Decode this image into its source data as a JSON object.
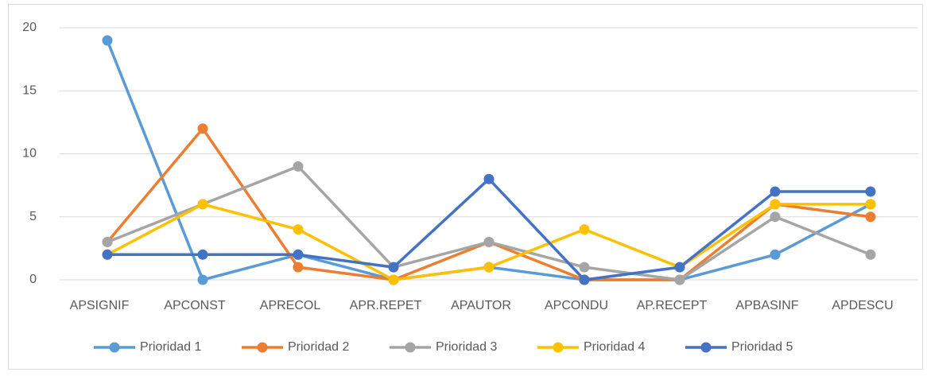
{
  "chart_data": {
    "type": "line",
    "categories": [
      "APSIGNIF",
      "APCONST",
      "APRECOL",
      "APR.REPET",
      "APAUTOR",
      "APCONDU",
      "AP.RECEPT",
      "APBASINF",
      "APDESCU"
    ],
    "series": [
      {
        "name": "Prioridad 1",
        "color": "#5b9bd5",
        "values": [
          19,
          0,
          2,
          0,
          1,
          0,
          0,
          2,
          6
        ]
      },
      {
        "name": "Prioridad 2",
        "color": "#ed7d31",
        "values": [
          3,
          12,
          1,
          0,
          3,
          0,
          0,
          6,
          5
        ]
      },
      {
        "name": "Prioridad 3",
        "color": "#a5a5a5",
        "values": [
          3,
          6,
          9,
          1,
          3,
          1,
          0,
          5,
          2
        ]
      },
      {
        "name": "Prioridad 4",
        "color": "#ffc000",
        "values": [
          2,
          6,
          4,
          0,
          1,
          4,
          1,
          6,
          6
        ]
      },
      {
        "name": "Prioridad 5",
        "color": "#4472c4",
        "values": [
          2,
          2,
          2,
          1,
          8,
          0,
          1,
          7,
          7
        ]
      }
    ],
    "ylim": [
      0,
      20
    ],
    "yticks": [
      0,
      5,
      10,
      15,
      20
    ],
    "grid": true,
    "legend": "bottom"
  }
}
